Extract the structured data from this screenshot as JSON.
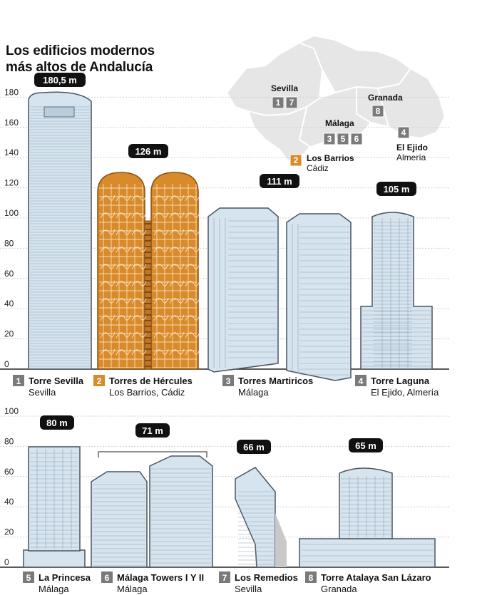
{
  "title_line1": "Los edificios modernos",
  "title_line2": "más altos de Andalucía",
  "chart_data": [
    {
      "type": "bar",
      "ylim": [
        0,
        180
      ],
      "yticks": [
        0,
        20,
        40,
        60,
        80,
        100,
        120,
        140,
        160,
        180
      ],
      "categories": [
        "Torre Sevilla",
        "Torres de Hércules",
        "Torres Martiricos",
        "Torre Laguna"
      ],
      "locations": [
        "Sevilla",
        "Los Barrios, Cádiz",
        "Málaga",
        "El Ejido, Almería"
      ],
      "numbers": [
        "1",
        "2",
        "3",
        "4"
      ],
      "values": [
        180.5,
        126,
        111,
        105
      ],
      "value_labels": [
        "180,5 m",
        "126 m",
        "111 m",
        "105 m"
      ]
    },
    {
      "type": "bar",
      "ylim": [
        0,
        100
      ],
      "yticks": [
        0,
        20,
        40,
        60,
        80,
        100
      ],
      "categories": [
        "La Princesa",
        "Málaga Towers I Y II",
        "Los Remedios",
        "Torre Atalaya San Lázaro"
      ],
      "locations": [
        "Málaga",
        "Málaga",
        "Sevilla",
        "Granada"
      ],
      "numbers": [
        "5",
        "6",
        "7",
        "8"
      ],
      "values": [
        80,
        71,
        66,
        65
      ],
      "value_labels": [
        "80 m",
        "71 m",
        "66 m",
        "65 m"
      ]
    }
  ],
  "map": {
    "labels": [
      {
        "id": "sevilla",
        "city": "Sevilla",
        "province": "",
        "badges": [
          "1",
          "7"
        ]
      },
      {
        "id": "granada",
        "city": "Granada",
        "province": "",
        "badges": [
          "8"
        ]
      },
      {
        "id": "malaga",
        "city": "Málaga",
        "province": "",
        "badges": [
          "3",
          "5",
          "6"
        ]
      },
      {
        "id": "ejido",
        "city": "El Ejido",
        "province": "Almería",
        "badges": [
          "4"
        ]
      },
      {
        "id": "barrios",
        "city": "Los Barrios",
        "province": "Cádiz",
        "badges": [
          "2"
        ]
      }
    ]
  },
  "colors": {
    "building_fill": "#d6e4ef",
    "building_stroke": "#4a5560",
    "hercules_fill": "#d98b2b",
    "hercules_lines": "#fff2e0",
    "badge_gray": "#7a7a7a",
    "badge_orange": "#d98b2b",
    "pill": "#111111",
    "map_fill": "#e6e6e6",
    "map_stroke": "#ffffff"
  }
}
